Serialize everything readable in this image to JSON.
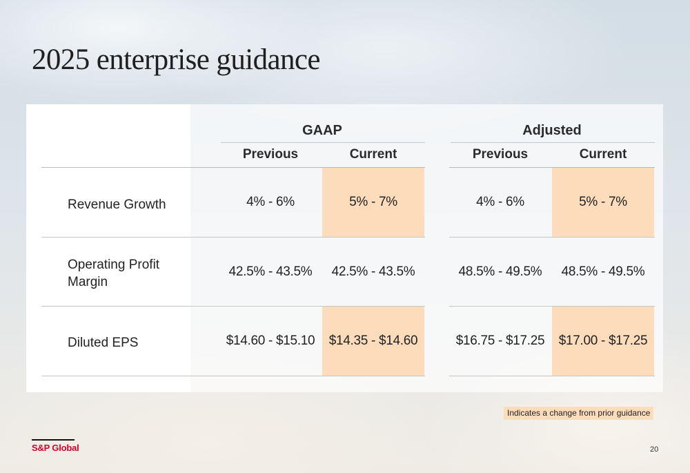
{
  "title": "2025 enterprise guidance",
  "table": {
    "groups": [
      "GAAP",
      "Adjusted"
    ],
    "columns": [
      "Previous",
      "Current",
      "Previous",
      "Current"
    ],
    "rows": [
      {
        "label": "Revenue Growth",
        "values": [
          "4% - 6%",
          "5% - 7%",
          "4% - 6%",
          "5% - 7%"
        ],
        "changed": [
          false,
          true,
          false,
          true
        ]
      },
      {
        "label_line1": "Operating Profit",
        "label_line2": "Margin",
        "values": [
          "42.5% - 43.5%",
          "42.5% - 43.5%",
          "48.5% - 49.5%",
          "48.5% - 49.5%"
        ],
        "changed": [
          false,
          false,
          false,
          false
        ]
      },
      {
        "label": "Diluted EPS",
        "values": [
          "$14.60 - $15.10",
          "$14.35 - $14.60",
          "$16.75 - $17.25",
          "$17.00 - $17.25"
        ],
        "changed": [
          false,
          true,
          false,
          true
        ]
      }
    ]
  },
  "legend": "Indicates a change from prior guidance",
  "highlight_color": "#fcdcbb",
  "footer": {
    "logo": "S&P Global",
    "logo_color": "#d6002a",
    "page_number": "20"
  }
}
